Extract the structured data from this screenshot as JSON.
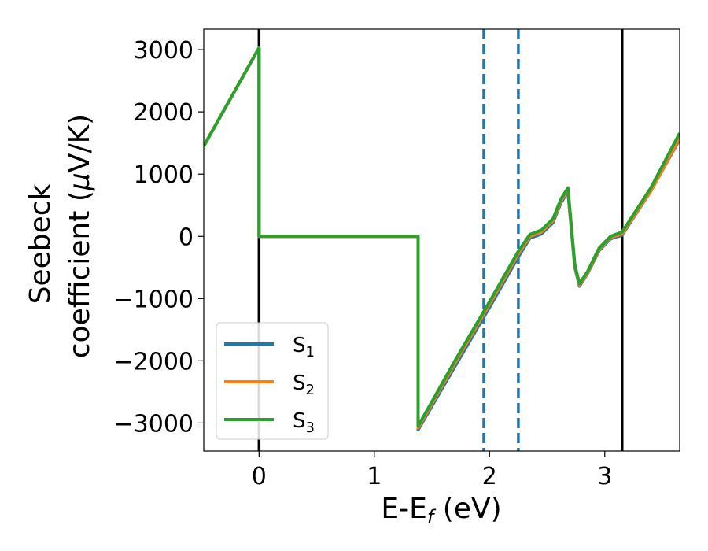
{
  "chart_data": {
    "type": "line",
    "xlabel_main": "E-E",
    "xlabel_sub": "f",
    "xlabel_unit": " (eV)",
    "ylabel_line1": "Seebeck",
    "ylabel_line2_text": "coefficient  (",
    "ylabel_line2_mu": "μ",
    "ylabel_line2_unit": "V/K)",
    "xlim": [
      -0.48,
      3.65
    ],
    "ylim": [
      -3450,
      3330
    ],
    "xticks": [
      0,
      1,
      2,
      3
    ],
    "xtick_labels": [
      "0",
      "1",
      "2",
      "3"
    ],
    "yticks": [
      -3000,
      -2000,
      -1000,
      0,
      1000,
      2000,
      3000
    ],
    "ytick_labels": [
      "−3000",
      "−2000",
      "−1000",
      "0",
      "1000",
      "2000",
      "3000"
    ],
    "vlines": [
      {
        "x": 0.0,
        "style": "solid",
        "color": "#000000"
      },
      {
        "x": 3.15,
        "style": "solid",
        "color": "#000000"
      },
      {
        "x": 1.95,
        "style": "dashed",
        "color": "#1f77b4"
      },
      {
        "x": 2.25,
        "style": "dashed",
        "color": "#1f77b4"
      }
    ],
    "legend_position": "lower-left",
    "series": [
      {
        "name_base": "S",
        "name_sub": "1",
        "color": "#1f77b4",
        "x": [
          -0.48,
          0.0,
          0.0,
          1.38,
          1.38,
          1.7,
          2.0,
          2.25,
          2.35,
          2.45,
          2.55,
          2.62,
          2.68,
          2.74,
          2.78,
          2.85,
          2.95,
          3.05,
          3.15,
          3.4,
          3.65
        ],
        "y": [
          1450,
          3030,
          0,
          0,
          -3110,
          -2090,
          -1140,
          -330,
          -30,
          40,
          220,
          540,
          720,
          -500,
          -800,
          -600,
          -230,
          -40,
          20,
          730,
          1560
        ]
      },
      {
        "name_base": "S",
        "name_sub": "2",
        "color": "#ff7f0e",
        "x": [
          -0.48,
          0.0,
          0.0,
          1.38,
          1.38,
          1.7,
          2.0,
          2.25,
          2.35,
          2.45,
          2.55,
          2.62,
          2.68,
          2.74,
          2.78,
          2.85,
          2.95,
          3.05,
          3.15,
          3.4,
          3.65
        ],
        "y": [
          1450,
          3030,
          0,
          0,
          -3080,
          -2040,
          -1090,
          -280,
          0,
          70,
          250,
          570,
          750,
          -480,
          -780,
          -590,
          -210,
          -20,
          40,
          730,
          1580
        ]
      },
      {
        "name_base": "S",
        "name_sub": "3",
        "color": "#2ca02c",
        "x": [
          -0.48,
          0.0,
          0.0,
          1.38,
          1.38,
          1.7,
          2.0,
          2.25,
          2.35,
          2.45,
          2.55,
          2.62,
          2.68,
          2.74,
          2.78,
          2.85,
          2.95,
          3.05,
          3.15,
          3.4,
          3.65
        ],
        "y": [
          1450,
          3030,
          0,
          0,
          -3050,
          -2000,
          -1050,
          -240,
          30,
          100,
          280,
          600,
          780,
          -460,
          -760,
          -570,
          -190,
          0,
          70,
          780,
          1660
        ]
      }
    ]
  }
}
